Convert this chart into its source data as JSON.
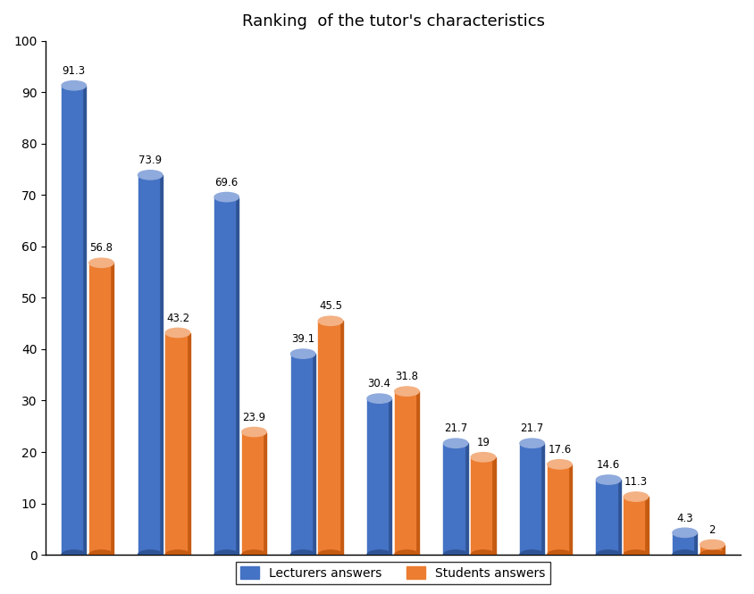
{
  "title": "Ranking  of the tutor's characteristics",
  "lecturers": [
    91.3,
    73.9,
    69.6,
    39.1,
    30.4,
    21.7,
    21.7,
    14.6,
    4.3
  ],
  "students": [
    56.8,
    43.2,
    23.9,
    45.5,
    31.8,
    19.0,
    17.6,
    11.3,
    2.0
  ],
  "lecturer_color_main": "#4472C4",
  "lecturer_color_dark": "#2F5496",
  "lecturer_color_top": "#8FAADC",
  "student_color_main": "#ED7D31",
  "student_color_dark": "#C55A11",
  "student_color_top": "#F4B183",
  "floor_color": "#D9D9D9",
  "ylim": [
    0,
    100
  ],
  "yticks": [
    0,
    10,
    20,
    30,
    40,
    50,
    60,
    70,
    80,
    90,
    100
  ],
  "legend_labels": [
    "Lecturers answers",
    "Students answers"
  ],
  "bar_width": 0.32,
  "title_fontsize": 13,
  "label_fontsize": 8.5,
  "legend_fontsize": 10,
  "n_groups": 9
}
